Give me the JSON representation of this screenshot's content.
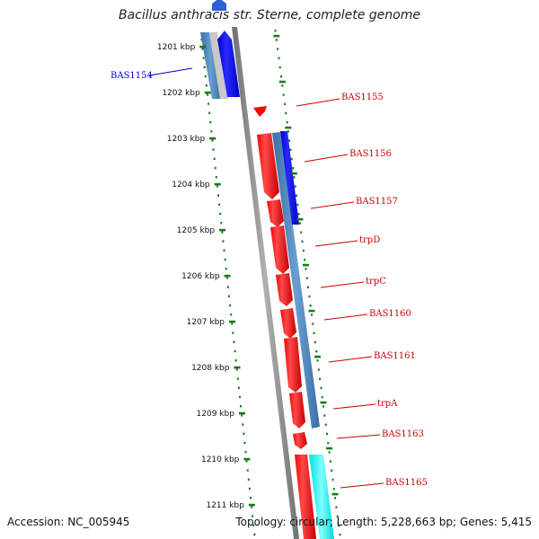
{
  "title": "Bacillus anthracis str. Sterne, complete genome",
  "accession_text": "Accession: NC_005945",
  "summary_text": "Topology: circular; Length: 5,228,663 bp; Genes: 5,415",
  "colors": {
    "forward_gene": "#ff0000",
    "reverse_gene": "#0000ff",
    "cds_blue": "#4a7fb5",
    "cyan_feature": "#00ffff",
    "ticks": "#1a7a1a",
    "backbone": "#808080",
    "label_red": "#cc0000",
    "label_blue": "#0000cc"
  },
  "scale_labels": [
    "1201 kbp",
    "1202 kbp",
    "1203 kbp",
    "1204 kbp",
    "1205 kbp",
    "1206 kbp",
    "1207 kbp",
    "1208 kbp",
    "1209 kbp",
    "1210 kbp",
    "1211 kbp"
  ],
  "gene_labels": [
    {
      "name": "BAS1154",
      "strand": "reverse"
    },
    {
      "name": "BAS1155",
      "strand": "forward"
    },
    {
      "name": "BAS1156",
      "strand": "forward"
    },
    {
      "name": "BAS1157",
      "strand": "forward"
    },
    {
      "name": "trpD",
      "strand": "forward"
    },
    {
      "name": "trpC",
      "strand": "forward"
    },
    {
      "name": "BAS1160",
      "strand": "forward"
    },
    {
      "name": "BAS1161",
      "strand": "forward"
    },
    {
      "name": "trpA",
      "strand": "forward"
    },
    {
      "name": "BAS1163",
      "strand": "forward"
    },
    {
      "name": "BAS1165",
      "strand": "forward"
    }
  ]
}
